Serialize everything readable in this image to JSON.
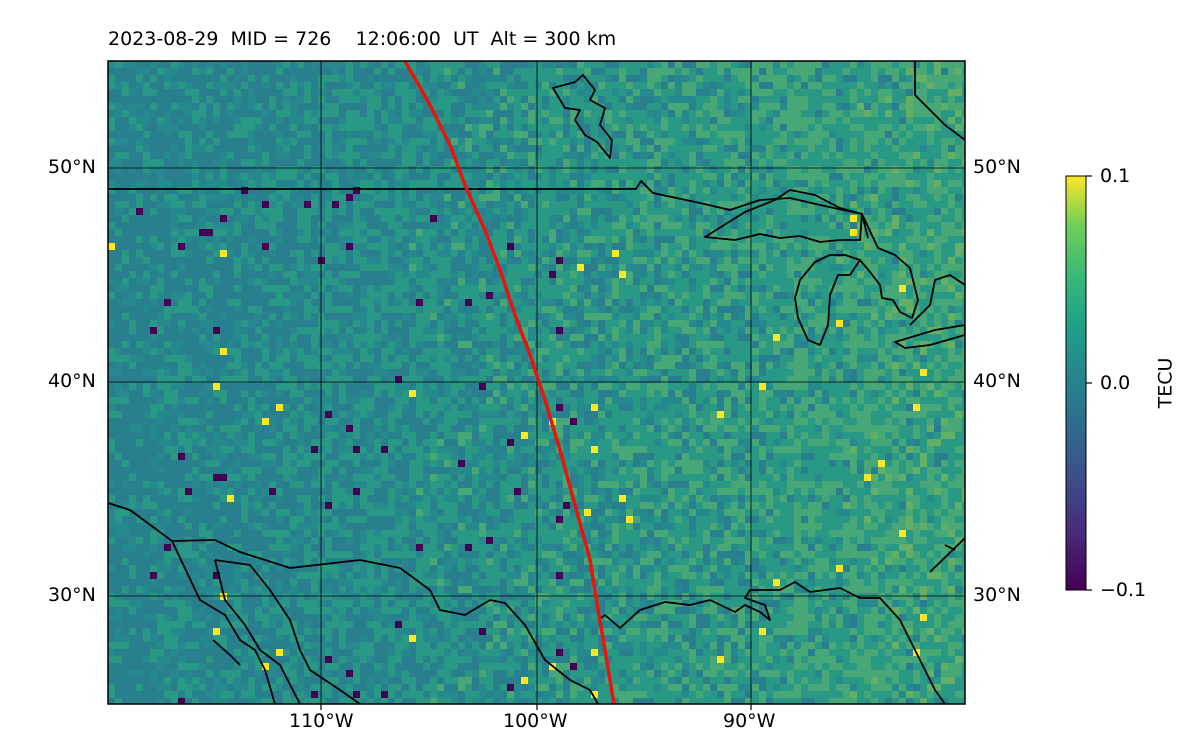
{
  "header": {
    "title": "2023-08-29  MID = 726    12:06:00  UT  Alt = 300 km"
  },
  "map": {
    "lon_range": [
      -120,
      -80
    ],
    "lat_range": [
      25,
      55
    ],
    "lat_ticks": [
      {
        "value": 50,
        "label": "50°N"
      },
      {
        "value": 40,
        "label": "40°N"
      },
      {
        "value": 30,
        "label": "30°N"
      }
    ],
    "lon_ticks": [
      {
        "value": -110,
        "label": "110°W"
      },
      {
        "value": -100,
        "label": "100°W"
      },
      {
        "value": -90,
        "label": "90°W"
      }
    ],
    "gridlines": true,
    "terminator_color": "#e8150d",
    "coast_color": "#000000"
  },
  "colorbar": {
    "label": "TECU",
    "min": -0.1,
    "max": 0.1,
    "ticks": [
      {
        "value": 0.1,
        "label": "0.1"
      },
      {
        "value": 0.0,
        "label": "0.0"
      },
      {
        "value": -0.1,
        "label": "−0.1"
      }
    ],
    "colormap": "viridis"
  }
}
